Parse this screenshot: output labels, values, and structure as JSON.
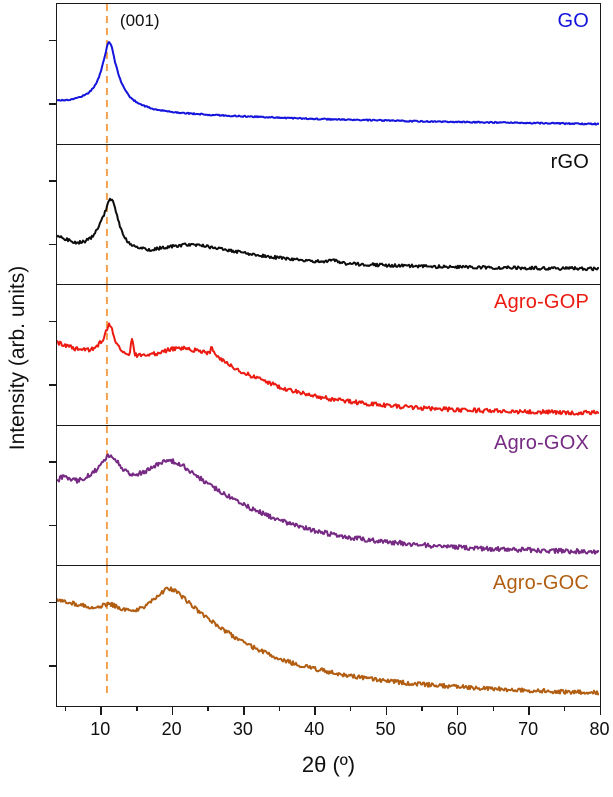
{
  "figure": {
    "background": "#ffffff",
    "axis_color": "#1a1a1a"
  },
  "chart_data": {
    "type": "line",
    "title": "",
    "xlabel": "2θ (º)",
    "ylabel": "Intensity (arb. units)",
    "x_range": [
      4,
      80
    ],
    "x_major_ticks": [
      10,
      20,
      30,
      40,
      50,
      60,
      70,
      80
    ],
    "x_minor_ticks": [
      5,
      15,
      25,
      35,
      45,
      55,
      65,
      75
    ],
    "grid": false,
    "legend_position": "top-right-inside-each-panel",
    "guide_line": {
      "x": 11.0,
      "color": "#f2a14e",
      "style": "dashed"
    },
    "peak_annotation": {
      "text": "(001)",
      "panel": "GO"
    },
    "panels": [
      {
        "name": "GO",
        "color": "#1414dd",
        "noise": 0.005,
        "points": [
          [
            4,
            0.3
          ],
          [
            5.5,
            0.3
          ],
          [
            7,
            0.32
          ],
          [
            8.5,
            0.36
          ],
          [
            9.5,
            0.43
          ],
          [
            10.2,
            0.53
          ],
          [
            10.8,
            0.66
          ],
          [
            11.2,
            0.74
          ],
          [
            11.6,
            0.72
          ],
          [
            12.2,
            0.58
          ],
          [
            13,
            0.44
          ],
          [
            14,
            0.34
          ],
          [
            15,
            0.29
          ],
          [
            16.5,
            0.25
          ],
          [
            18,
            0.225
          ],
          [
            20,
            0.21
          ],
          [
            23,
            0.195
          ],
          [
            26,
            0.185
          ],
          [
            30,
            0.175
          ],
          [
            35,
            0.165
          ],
          [
            40,
            0.155
          ],
          [
            45,
            0.148
          ],
          [
            50,
            0.142
          ],
          [
            55,
            0.136
          ],
          [
            60,
            0.131
          ],
          [
            65,
            0.127
          ],
          [
            70,
            0.123
          ],
          [
            75,
            0.119
          ],
          [
            80,
            0.115
          ]
        ]
      },
      {
        "name": "rGO",
        "color": "#0d0d0d",
        "noise": 0.012,
        "points": [
          [
            4,
            0.34
          ],
          [
            5,
            0.32
          ],
          [
            6,
            0.3
          ],
          [
            7,
            0.29
          ],
          [
            8,
            0.3
          ],
          [
            9,
            0.34
          ],
          [
            10,
            0.43
          ],
          [
            10.8,
            0.53
          ],
          [
            11.5,
            0.62
          ],
          [
            12.1,
            0.56
          ],
          [
            12.8,
            0.42
          ],
          [
            13.6,
            0.32
          ],
          [
            14.5,
            0.27
          ],
          [
            15.5,
            0.245
          ],
          [
            17,
            0.235
          ],
          [
            18.5,
            0.245
          ],
          [
            20,
            0.26
          ],
          [
            21.5,
            0.268
          ],
          [
            23,
            0.27
          ],
          [
            24.5,
            0.262
          ],
          [
            26,
            0.25
          ],
          [
            28,
            0.23
          ],
          [
            30,
            0.21
          ],
          [
            33,
            0.185
          ],
          [
            36,
            0.165
          ],
          [
            39,
            0.15
          ],
          [
            41.5,
            0.14
          ],
          [
            42.8,
            0.152
          ],
          [
            43.6,
            0.132
          ],
          [
            45,
            0.126
          ],
          [
            48,
            0.118
          ],
          [
            52,
            0.11
          ],
          [
            56,
            0.104
          ],
          [
            60,
            0.1
          ],
          [
            65,
            0.096
          ],
          [
            70,
            0.092
          ],
          [
            75,
            0.089
          ],
          [
            80,
            0.086
          ]
        ]
      },
      {
        "name": "Agro-GOP",
        "color": "#ec1b12",
        "noise": 0.016,
        "points": [
          [
            4,
            0.6
          ],
          [
            5,
            0.58
          ],
          [
            6,
            0.56
          ],
          [
            7,
            0.545
          ],
          [
            8,
            0.54
          ],
          [
            9,
            0.55
          ],
          [
            10,
            0.59
          ],
          [
            10.7,
            0.65
          ],
          [
            11.4,
            0.74
          ],
          [
            12.1,
            0.62
          ],
          [
            12.8,
            0.55
          ],
          [
            13.5,
            0.52
          ],
          [
            14.2,
            0.51
          ],
          [
            14.5,
            0.63
          ],
          [
            14.9,
            0.51
          ],
          [
            15.8,
            0.5
          ],
          [
            17,
            0.5
          ],
          [
            18.5,
            0.52
          ],
          [
            20,
            0.545
          ],
          [
            21.5,
            0.55
          ],
          [
            23,
            0.54
          ],
          [
            24.5,
            0.525
          ],
          [
            25.4,
            0.52
          ],
          [
            25.7,
            0.575
          ],
          [
            26.1,
            0.5
          ],
          [
            27.5,
            0.455
          ],
          [
            29,
            0.4
          ],
          [
            31,
            0.345
          ],
          [
            33,
            0.3
          ],
          [
            35,
            0.26
          ],
          [
            37,
            0.225
          ],
          [
            39,
            0.2
          ],
          [
            41,
            0.175
          ],
          [
            44,
            0.15
          ],
          [
            47,
            0.13
          ],
          [
            50,
            0.115
          ],
          [
            53,
            0.1
          ],
          [
            56,
            0.09
          ],
          [
            60,
            0.08
          ],
          [
            64,
            0.072
          ],
          [
            68,
            0.066
          ],
          [
            72,
            0.062
          ],
          [
            76,
            0.058
          ],
          [
            80,
            0.055
          ]
        ]
      },
      {
        "name": "Agro-GOX",
        "color": "#762a83",
        "noise": 0.018,
        "points": [
          [
            4,
            0.62
          ],
          [
            5,
            0.65
          ],
          [
            6,
            0.63
          ],
          [
            7,
            0.62
          ],
          [
            8,
            0.64
          ],
          [
            9,
            0.68
          ],
          [
            10,
            0.73
          ],
          [
            10.7,
            0.78
          ],
          [
            11.3,
            0.81
          ],
          [
            12.2,
            0.78
          ],
          [
            13,
            0.72
          ],
          [
            14,
            0.68
          ],
          [
            15,
            0.67
          ],
          [
            16,
            0.68
          ],
          [
            17,
            0.71
          ],
          [
            18,
            0.74
          ],
          [
            19,
            0.765
          ],
          [
            20,
            0.77
          ],
          [
            21,
            0.75
          ],
          [
            22,
            0.72
          ],
          [
            23,
            0.68
          ],
          [
            24.5,
            0.62
          ],
          [
            26,
            0.565
          ],
          [
            28,
            0.5
          ],
          [
            30,
            0.44
          ],
          [
            32,
            0.385
          ],
          [
            34,
            0.34
          ],
          [
            36,
            0.3
          ],
          [
            38,
            0.265
          ],
          [
            40,
            0.235
          ],
          [
            43,
            0.2
          ],
          [
            46,
            0.175
          ],
          [
            49,
            0.155
          ],
          [
            52,
            0.14
          ],
          [
            55,
            0.125
          ],
          [
            58,
            0.112
          ],
          [
            61,
            0.103
          ],
          [
            65,
            0.093
          ],
          [
            69,
            0.086
          ],
          [
            73,
            0.08
          ],
          [
            76,
            0.076
          ],
          [
            80,
            0.072
          ]
        ]
      },
      {
        "name": "Agro-GOC",
        "color": "#b25e12",
        "noise": 0.016,
        "points": [
          [
            4,
            0.78
          ],
          [
            5,
            0.77
          ],
          [
            6,
            0.755
          ],
          [
            7,
            0.74
          ],
          [
            8,
            0.73
          ],
          [
            9,
            0.725
          ],
          [
            10,
            0.73
          ],
          [
            11,
            0.745
          ],
          [
            11.8,
            0.74
          ],
          [
            12.6,
            0.72
          ],
          [
            13.5,
            0.705
          ],
          [
            14.5,
            0.7
          ],
          [
            15.5,
            0.71
          ],
          [
            16.5,
            0.735
          ],
          [
            17.5,
            0.775
          ],
          [
            18.5,
            0.82
          ],
          [
            19.3,
            0.855
          ],
          [
            20,
            0.86
          ],
          [
            20.8,
            0.835
          ],
          [
            21.8,
            0.79
          ],
          [
            23,
            0.73
          ],
          [
            24.5,
            0.66
          ],
          [
            26,
            0.6
          ],
          [
            28,
            0.525
          ],
          [
            30,
            0.455
          ],
          [
            32,
            0.4
          ],
          [
            34,
            0.35
          ],
          [
            36,
            0.31
          ],
          [
            38,
            0.275
          ],
          [
            40,
            0.25
          ],
          [
            43,
            0.215
          ],
          [
            46,
            0.185
          ],
          [
            49,
            0.162
          ],
          [
            52,
            0.145
          ],
          [
            55,
            0.13
          ],
          [
            58,
            0.117
          ],
          [
            61,
            0.107
          ],
          [
            65,
            0.094
          ],
          [
            69,
            0.084
          ],
          [
            73,
            0.076
          ],
          [
            77,
            0.068
          ],
          [
            80,
            0.064
          ]
        ]
      }
    ]
  }
}
